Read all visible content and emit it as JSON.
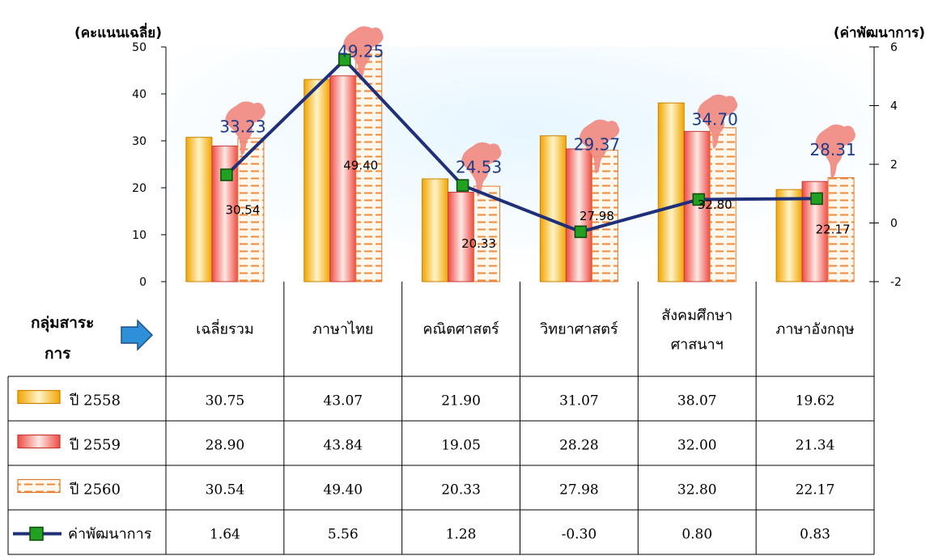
{
  "chart_data": {
    "type": "bar",
    "y_left_label": "(คะแนนเฉลี่ย)",
    "y_right_label": "(ค่าพัฒนาการ)",
    "ylim_left": [
      0,
      50
    ],
    "yticks_left": [
      "0",
      "10",
      "20",
      "30",
      "40",
      "50"
    ],
    "ylim_right": [
      -2,
      6
    ],
    "yticks_right": [
      "-2",
      "0",
      "2",
      "4",
      "6"
    ],
    "group_label": "กลุ่มสาระการ",
    "categories": [
      "เฉลี่ยรวม",
      "ภาษาไทย",
      "คณิตศาสตร์",
      "วิทยาศาสตร์",
      "สังคมศึกษาศาสนาฯ",
      "ภาษาอังกฤษ"
    ],
    "category_lines": [
      [
        "เฉลี่ยรวม"
      ],
      [
        "ภาษาไทย"
      ],
      [
        "คณิตศาสตร์"
      ],
      [
        "วิทยาศาสตร์"
      ],
      [
        "สังคมศึกษา",
        "ศาสนาฯ"
      ],
      [
        "ภาษาอังกฤษ"
      ]
    ],
    "series": [
      {
        "name": "ปี 2558",
        "values": [
          30.75,
          43.07,
          21.9,
          31.07,
          38.07,
          19.62
        ],
        "display": [
          "30.75",
          "43.07",
          "21.90",
          "31.07",
          "38.07",
          "19.62"
        ],
        "color": "#f5b93a"
      },
      {
        "name": "ปี 2559",
        "values": [
          28.9,
          43.84,
          19.05,
          28.28,
          32.0,
          21.34
        ],
        "display": [
          "28.90",
          "43.84",
          "19.05",
          "28.28",
          "32.00",
          "21.34"
        ],
        "color": "#f0605a"
      },
      {
        "name": "ปี 2560",
        "values": [
          30.54,
          49.4,
          20.33,
          27.98,
          32.8,
          22.17
        ],
        "display": [
          "30.54",
          "49.40",
          "20.33",
          "27.98",
          "32.80",
          "22.17"
        ],
        "color": "#f08a3c"
      },
      {
        "name": "ค่าพัฒนาการ",
        "type": "line",
        "axis": "right",
        "values": [
          1.64,
          5.56,
          1.28,
          -0.3,
          0.8,
          0.83
        ],
        "display": [
          "1.64",
          "5.56",
          "1.28",
          "-0.30",
          "0.80",
          "0.83"
        ],
        "color": "#1f2f7a",
        "marker_color": "#22a022"
      }
    ],
    "bar_value_labels": [
      "30.54",
      "49.40",
      "20.33",
      "27.98",
      "32.80",
      "22.17"
    ],
    "province_labels": [
      "33.23",
      "49.25",
      "24.53",
      "29.37",
      "34.70",
      "28.31"
    ],
    "province_label_values": [
      33.23,
      49.25,
      24.53,
      29.37,
      34.7,
      28.31
    ],
    "map_color": "#f08a80",
    "grid": false
  }
}
